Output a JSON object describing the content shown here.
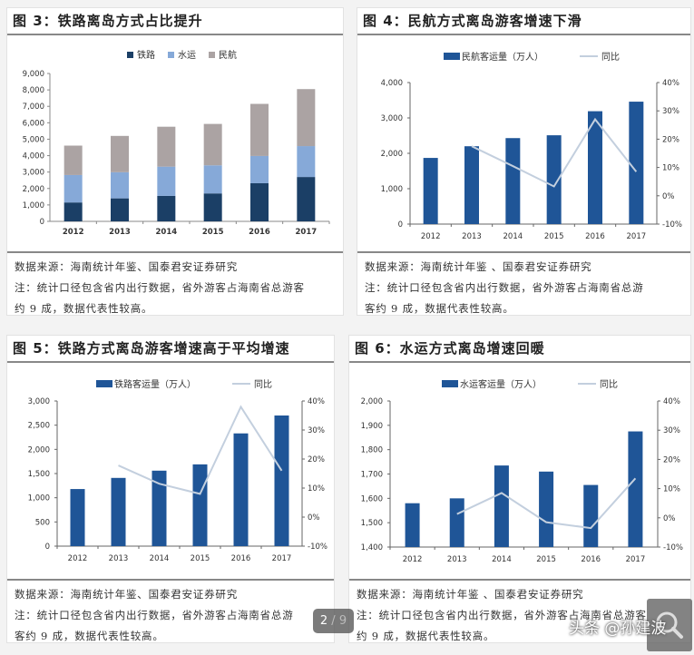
{
  "panels": [
    {
      "title": "图 3：铁路离岛方式占比提升",
      "source": "数据来源：海南统计年鉴、国泰君安证券研究",
      "note_line1": "注：统计口径包含省内出行数据，省外游客占海南省总游客",
      "note_line2": "约 9 成，数据代表性较高。"
    },
    {
      "title": "图 4：民航方式离岛游客增速下滑",
      "source": "数据来源：海南统计年鉴 、国泰君安证券研究",
      "note_line1": "注：统计口径包含省内出行数据，省外游客占海南省总游",
      "note_line2": "客约 9 成，数据代表性较高。"
    },
    {
      "title": "图 5：铁路方式离岛游客增速高于平均增速",
      "source": "数据来源：海南统计年鉴、国泰君安证券研究",
      "note_line1": "注：统计口径包含省内出行数据，省外游客占海南省总游",
      "note_line2": "客约 9 成，数据代表性较高。"
    },
    {
      "title": "图 6：水运方式离岛增速回暖",
      "source": "数据来源：海南统计年鉴 、国泰君安证券研究",
      "note_line1": "注：统计口径包含省内出行数据，省外游客占海南省总游客",
      "note_line2": "约 9 成，数据代表性较高。"
    }
  ],
  "colors": {
    "rail": "#1b3f66",
    "water": "#86a9d8",
    "air": "#aba3a3",
    "bar_blue": "#1f5597",
    "yoy_line": "#c3cfde"
  },
  "chart_data": [
    {
      "type": "bar",
      "stacked": true,
      "title": "图 3：铁路离岛方式占比提升",
      "categories": [
        "2012",
        "2013",
        "2014",
        "2015",
        "2016",
        "2017"
      ],
      "series": [
        {
          "name": "铁路",
          "values": [
            1150,
            1400,
            1550,
            1700,
            2320,
            2700
          ]
        },
        {
          "name": "水运",
          "values": [
            1670,
            1590,
            1780,
            1710,
            1660,
            1880
          ]
        },
        {
          "name": "民航",
          "values": [
            1790,
            2210,
            2430,
            2520,
            3170,
            3470
          ]
        }
      ],
      "yticks": [
        "0",
        "1,000",
        "2,000",
        "3,000",
        "4,000",
        "5,000",
        "6,000",
        "7,000",
        "8,000",
        "9,000"
      ],
      "ylim": [
        0,
        9000
      ],
      "legend_position": "top"
    },
    {
      "type": "bar+line",
      "title": "图 4：民航方式离岛游客增速下滑",
      "categories": [
        "2012",
        "2013",
        "2014",
        "2015",
        "2016",
        "2017"
      ],
      "series": [
        {
          "name": "民航客运量（万人）",
          "axis": "left",
          "values": [
            1870,
            2200,
            2430,
            2510,
            3190,
            3460
          ]
        },
        {
          "name": "同比",
          "axis": "right",
          "values": [
            null,
            17.5,
            10.5,
            3.3,
            27.0,
            8.5
          ]
        }
      ],
      "yticks_left": [
        "0",
        "1,000",
        "2,000",
        "3,000",
        "4,000"
      ],
      "yticks_right": [
        "-10%",
        "0%",
        "10%",
        "20%",
        "30%",
        "40%"
      ],
      "ylim_left": [
        0,
        4000
      ],
      "ylim_right": [
        -10,
        40
      ],
      "legend_position": "top"
    },
    {
      "type": "bar+line",
      "title": "图 5：铁路方式离岛游客增速高于平均增速",
      "categories": [
        "2012",
        "2013",
        "2014",
        "2015",
        "2016",
        "2017"
      ],
      "series": [
        {
          "name": "铁路客运量（万人）",
          "axis": "left",
          "values": [
            1180,
            1410,
            1560,
            1690,
            2330,
            2700
          ]
        },
        {
          "name": "同比",
          "axis": "right",
          "values": [
            null,
            17.8,
            11.5,
            8.0,
            38.0,
            16.0
          ]
        }
      ],
      "yticks_left": [
        "0",
        "500",
        "1,000",
        "1,500",
        "2,000",
        "2,500",
        "3,000"
      ],
      "yticks_right": [
        "-10%",
        "0%",
        "10%",
        "20%",
        "30%",
        "40%"
      ],
      "ylim_left": [
        0,
        3000
      ],
      "ylim_right": [
        -10,
        40
      ],
      "legend_position": "top"
    },
    {
      "type": "bar+line",
      "title": "图 6：水运方式离岛增速回暖",
      "categories": [
        "2012",
        "2013",
        "2014",
        "2015",
        "2016",
        "2017"
      ],
      "series": [
        {
          "name": "水运客运量（万人）",
          "axis": "left",
          "values": [
            1580,
            1600,
            1735,
            1710,
            1655,
            1875
          ]
        },
        {
          "name": "同比",
          "axis": "right",
          "values": [
            null,
            1.3,
            8.5,
            -1.5,
            -3.5,
            13.5
          ]
        }
      ],
      "yticks_left": [
        "1,400",
        "1,500",
        "1,600",
        "1,700",
        "1,800",
        "1,900",
        "2,000"
      ],
      "yticks_right": [
        "-10%",
        "0%",
        "10%",
        "20%",
        "30%",
        "40%"
      ],
      "ylim_left": [
        1400,
        2000
      ],
      "ylim_right": [
        -10,
        40
      ],
      "legend_position": "top"
    }
  ],
  "overlay": {
    "page_current": "2",
    "page_sep": "/",
    "page_total": "9",
    "watermark": "头条 @孙建波"
  }
}
